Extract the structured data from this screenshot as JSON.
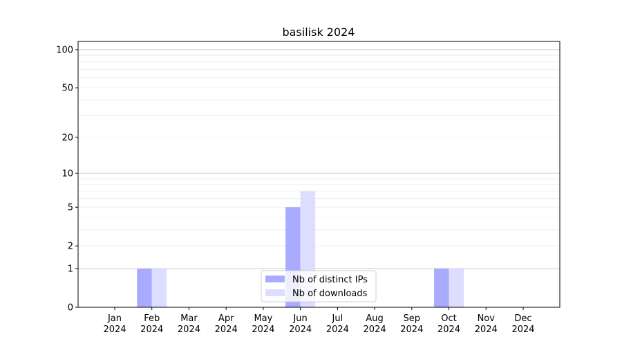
{
  "chart_data": {
    "type": "bar",
    "title": "basilisk 2024",
    "xlabel": "",
    "ylabel": "",
    "yscale": "log(1+y)",
    "ylim": [
      0,
      116
    ],
    "yticks": [
      0,
      1,
      2,
      5,
      10,
      20,
      50,
      100
    ],
    "grid": true,
    "legend_position": "lower-center",
    "categories": [
      "Jan\n2024",
      "Feb\n2024",
      "Mar\n2024",
      "Apr\n2024",
      "May\n2024",
      "Jun\n2024",
      "Jul\n2024",
      "Aug\n2024",
      "Sep\n2024",
      "Oct\n2024",
      "Nov\n2024",
      "Dec\n2024"
    ],
    "series": [
      {
        "name": "Nb of distinct IPs",
        "color": "#aaaaff",
        "values": [
          0,
          1,
          0,
          0,
          0,
          5,
          0,
          0,
          0,
          1,
          0,
          0
        ]
      },
      {
        "name": "Nb of downloads",
        "color": "#ddddff",
        "values": [
          0,
          1,
          0,
          0,
          0,
          7,
          0,
          0,
          0,
          1,
          0,
          0
        ]
      }
    ]
  }
}
